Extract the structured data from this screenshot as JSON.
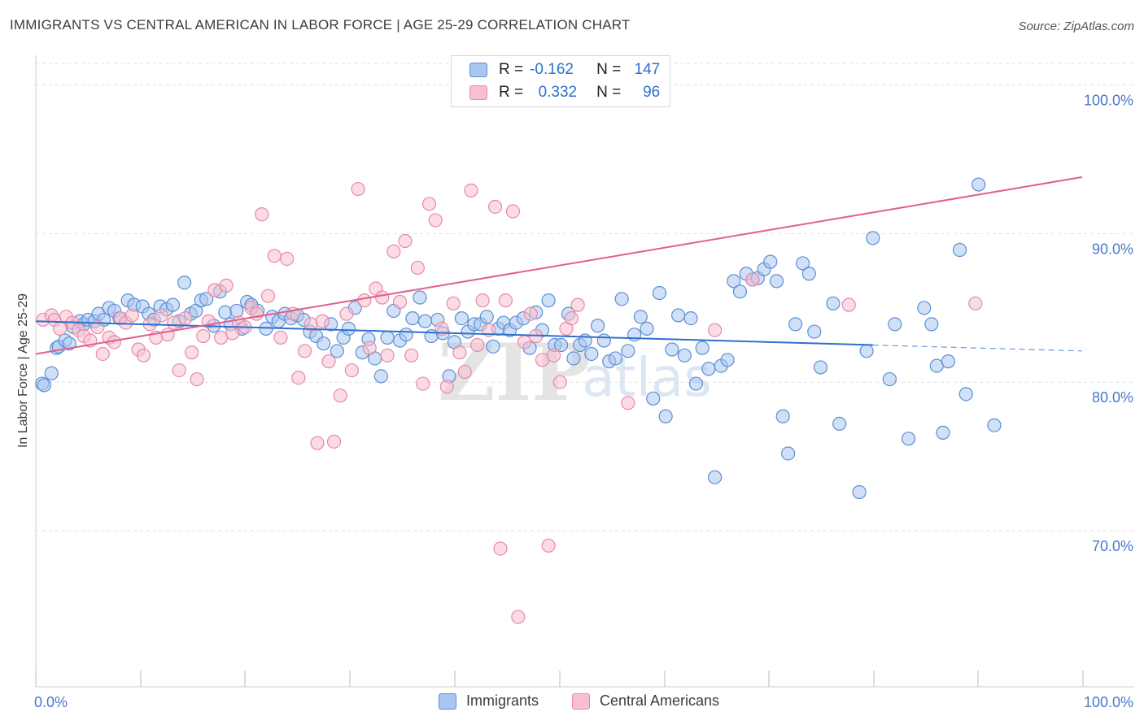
{
  "header": {
    "title": "IMMIGRANTS VS CENTRAL AMERICAN IN LABOR FORCE | AGE 25-29 CORRELATION CHART",
    "source": "Source: ZipAtlas.com"
  },
  "colors": {
    "blue_fill": "#a9c6ee",
    "blue_stroke": "#5b8fd6",
    "blue_line": "#2f6fcf",
    "pink_fill": "#f7bfd0",
    "pink_stroke": "#e889a6",
    "pink_line": "#e0608a",
    "tick_label": "#4a78c8",
    "grid": "#e0e0e0"
  },
  "legend_top": {
    "rows": [
      {
        "r_label": "R =",
        "r_value": "-0.162",
        "n_label": "N =",
        "n_value": "147"
      },
      {
        "r_label": "R =",
        "r_value": "0.332",
        "n_label": "N =",
        "n_value": "96"
      }
    ]
  },
  "legend_bottom": {
    "items": [
      "Immigrants",
      "Central Americans"
    ]
  },
  "watermark": {
    "zip": "ZIP",
    "atlas": "atlas"
  },
  "chart_data": {
    "type": "scatter",
    "title": "IMMIGRANTS VS CENTRAL AMERICAN IN LABOR FORCE | AGE 25-29 CORRELATION CHART",
    "xlabel": "",
    "ylabel": "In Labor Force | Age 25-29",
    "xlim": [
      0,
      100
    ],
    "ylim": [
      59.5,
      102
    ],
    "x_tick_labels": [
      "0.0%",
      "100.0%"
    ],
    "y_ticks": [
      70,
      80,
      90,
      100
    ],
    "y_tick_labels": [
      "70.0%",
      "80.0%",
      "90.0%",
      "100.0%"
    ],
    "grid": true,
    "series": [
      {
        "name": "Immigrants",
        "r": -0.162,
        "n": 147,
        "trend": {
          "x0": 0,
          "y0": 84.1,
          "x1": 80,
          "y1": 82.5,
          "dash_to_x": 100,
          "dash_to_y": 82.1
        },
        "points": [
          [
            0.6,
            79.9
          ],
          [
            0.8,
            79.8
          ],
          [
            1.5,
            80.6
          ],
          [
            2.0,
            82.3
          ],
          [
            2.2,
            82.4
          ],
          [
            2.8,
            82.8
          ],
          [
            3.2,
            82.6
          ],
          [
            3.6,
            83.7
          ],
          [
            4.2,
            84.1
          ],
          [
            4.6,
            83.9
          ],
          [
            5.0,
            84.2
          ],
          [
            5.6,
            84.1
          ],
          [
            6.0,
            84.6
          ],
          [
            6.5,
            84.2
          ],
          [
            7.0,
            85.0
          ],
          [
            7.5,
            84.8
          ],
          [
            8.0,
            84.3
          ],
          [
            8.8,
            85.5
          ],
          [
            9.4,
            85.2
          ],
          [
            10.2,
            85.1
          ],
          [
            10.8,
            84.6
          ],
          [
            11.3,
            84.2
          ],
          [
            11.9,
            85.1
          ],
          [
            12.5,
            84.9
          ],
          [
            13.1,
            85.2
          ],
          [
            13.7,
            84.1
          ],
          [
            14.2,
            86.7
          ],
          [
            14.8,
            84.6
          ],
          [
            15.3,
            84.8
          ],
          [
            15.8,
            85.5
          ],
          [
            16.3,
            85.6
          ],
          [
            17.0,
            83.8
          ],
          [
            17.6,
            86.1
          ],
          [
            18.1,
            84.7
          ],
          [
            18.6,
            83.9
          ],
          [
            19.2,
            84.8
          ],
          [
            19.7,
            83.6
          ],
          [
            20.2,
            85.4
          ],
          [
            20.6,
            85.2
          ],
          [
            21.2,
            84.8
          ],
          [
            22.0,
            83.6
          ],
          [
            22.6,
            84.4
          ],
          [
            23.2,
            84.1
          ],
          [
            23.8,
            84.6
          ],
          [
            24.4,
            84.3
          ],
          [
            25.0,
            84.5
          ],
          [
            25.6,
            84.2
          ],
          [
            26.2,
            83.4
          ],
          [
            26.8,
            83.1
          ],
          [
            27.5,
            82.6
          ],
          [
            28.2,
            83.9
          ],
          [
            28.8,
            82.1
          ],
          [
            29.4,
            83.0
          ],
          [
            29.9,
            83.6
          ],
          [
            30.5,
            85.0
          ],
          [
            31.2,
            82.0
          ],
          [
            31.8,
            82.9
          ],
          [
            32.4,
            81.6
          ],
          [
            33.0,
            80.4
          ],
          [
            33.6,
            83.0
          ],
          [
            34.2,
            84.8
          ],
          [
            34.8,
            82.8
          ],
          [
            35.4,
            83.2
          ],
          [
            36.0,
            84.3
          ],
          [
            36.7,
            85.7
          ],
          [
            37.2,
            84.1
          ],
          [
            37.8,
            83.1
          ],
          [
            38.4,
            84.2
          ],
          [
            38.9,
            83.3
          ],
          [
            39.5,
            80.4
          ],
          [
            40.0,
            82.7
          ],
          [
            40.7,
            84.3
          ],
          [
            41.3,
            83.4
          ],
          [
            41.9,
            83.9
          ],
          [
            42.5,
            83.9
          ],
          [
            43.1,
            84.4
          ],
          [
            43.7,
            82.4
          ],
          [
            44.2,
            83.6
          ],
          [
            44.7,
            84.0
          ],
          [
            45.3,
            83.5
          ],
          [
            45.9,
            84.0
          ],
          [
            46.6,
            84.3
          ],
          [
            47.2,
            82.3
          ],
          [
            47.8,
            84.7
          ],
          [
            48.4,
            83.5
          ],
          [
            49.0,
            85.5
          ],
          [
            49.6,
            82.5
          ],
          [
            50.2,
            82.5
          ],
          [
            50.9,
            84.6
          ],
          [
            51.4,
            81.6
          ],
          [
            52.0,
            82.5
          ],
          [
            52.5,
            82.8
          ],
          [
            53.1,
            81.9
          ],
          [
            53.7,
            83.8
          ],
          [
            54.3,
            82.8
          ],
          [
            54.8,
            81.4
          ],
          [
            55.4,
            81.6
          ],
          [
            56.0,
            85.6
          ],
          [
            56.6,
            82.1
          ],
          [
            57.2,
            83.2
          ],
          [
            57.8,
            84.4
          ],
          [
            58.4,
            83.6
          ],
          [
            59.0,
            78.9
          ],
          [
            59.6,
            86.0
          ],
          [
            60.2,
            77.7
          ],
          [
            60.8,
            82.2
          ],
          [
            61.4,
            84.5
          ],
          [
            62.0,
            81.8
          ],
          [
            62.6,
            84.3
          ],
          [
            63.1,
            79.9
          ],
          [
            63.7,
            82.3
          ],
          [
            64.3,
            80.9
          ],
          [
            64.9,
            73.6
          ],
          [
            65.5,
            81.1
          ],
          [
            66.1,
            81.5
          ],
          [
            66.7,
            86.8
          ],
          [
            67.3,
            86.1
          ],
          [
            67.9,
            87.3
          ],
          [
            68.5,
            86.9
          ],
          [
            69.0,
            87.0
          ],
          [
            69.6,
            87.6
          ],
          [
            70.2,
            88.1
          ],
          [
            70.8,
            86.8
          ],
          [
            71.4,
            77.7
          ],
          [
            71.9,
            75.2
          ],
          [
            72.6,
            83.9
          ],
          [
            73.3,
            88.0
          ],
          [
            73.9,
            87.3
          ],
          [
            74.4,
            83.4
          ],
          [
            75.0,
            81.0
          ],
          [
            76.2,
            85.3
          ],
          [
            76.8,
            77.2
          ],
          [
            78.7,
            72.6
          ],
          [
            79.4,
            82.1
          ],
          [
            80.0,
            89.7
          ],
          [
            81.6,
            80.2
          ],
          [
            82.1,
            83.9
          ],
          [
            83.4,
            76.2
          ],
          [
            84.9,
            85.0
          ],
          [
            85.6,
            83.9
          ],
          [
            86.1,
            81.1
          ],
          [
            86.7,
            76.6
          ],
          [
            87.2,
            81.4
          ],
          [
            88.3,
            88.9
          ],
          [
            88.9,
            79.2
          ],
          [
            90.1,
            93.3
          ],
          [
            91.6,
            77.1
          ]
        ]
      },
      {
        "name": "Central Americans",
        "r": 0.332,
        "n": 96,
        "trend": {
          "x0": 0,
          "y0": 81.9,
          "x1": 100,
          "y1": 93.8
        },
        "points": [
          [
            0.7,
            84.2
          ],
          [
            1.5,
            84.5
          ],
          [
            1.8,
            84.2
          ],
          [
            2.3,
            83.6
          ],
          [
            2.9,
            84.4
          ],
          [
            3.5,
            84.0
          ],
          [
            4.1,
            83.5
          ],
          [
            4.6,
            83.1
          ],
          [
            5.2,
            82.8
          ],
          [
            5.9,
            83.7
          ],
          [
            6.4,
            81.9
          ],
          [
            7.0,
            83.0
          ],
          [
            7.5,
            82.7
          ],
          [
            8.1,
            84.3
          ],
          [
            8.6,
            84.0
          ],
          [
            9.2,
            84.5
          ],
          [
            9.8,
            82.2
          ],
          [
            10.3,
            81.8
          ],
          [
            10.9,
            83.9
          ],
          [
            11.5,
            83.0
          ],
          [
            12.0,
            84.5
          ],
          [
            12.6,
            83.2
          ],
          [
            13.2,
            84.0
          ],
          [
            13.7,
            80.8
          ],
          [
            14.3,
            84.3
          ],
          [
            14.9,
            82.0
          ],
          [
            15.4,
            80.2
          ],
          [
            16.0,
            83.1
          ],
          [
            16.5,
            84.1
          ],
          [
            17.1,
            86.2
          ],
          [
            17.7,
            83.0
          ],
          [
            18.2,
            86.5
          ],
          [
            18.8,
            83.3
          ],
          [
            19.4,
            84.0
          ],
          [
            20.0,
            83.7
          ],
          [
            20.6,
            85.0
          ],
          [
            21.1,
            84.6
          ],
          [
            21.6,
            91.3
          ],
          [
            22.2,
            85.8
          ],
          [
            22.8,
            88.5
          ],
          [
            23.4,
            83.0
          ],
          [
            24.0,
            88.3
          ],
          [
            24.6,
            84.6
          ],
          [
            25.1,
            80.3
          ],
          [
            25.7,
            82.1
          ],
          [
            26.3,
            83.9
          ],
          [
            26.9,
            75.9
          ],
          [
            27.4,
            84.1
          ],
          [
            28.0,
            81.4
          ],
          [
            28.5,
            76.0
          ],
          [
            29.1,
            79.1
          ],
          [
            29.7,
            84.6
          ],
          [
            30.2,
            80.8
          ],
          [
            30.8,
            93.0
          ],
          [
            31.4,
            85.5
          ],
          [
            31.9,
            82.3
          ],
          [
            32.5,
            86.3
          ],
          [
            33.1,
            85.7
          ],
          [
            33.6,
            81.8
          ],
          [
            34.2,
            88.8
          ],
          [
            34.8,
            85.4
          ],
          [
            35.3,
            89.5
          ],
          [
            35.9,
            81.8
          ],
          [
            36.5,
            87.7
          ],
          [
            37.0,
            79.9
          ],
          [
            37.6,
            92.0
          ],
          [
            38.2,
            90.9
          ],
          [
            38.8,
            83.6
          ],
          [
            39.3,
            79.7
          ],
          [
            39.9,
            85.3
          ],
          [
            40.5,
            82.0
          ],
          [
            41.0,
            80.7
          ],
          [
            41.6,
            92.9
          ],
          [
            42.2,
            82.5
          ],
          [
            42.7,
            85.5
          ],
          [
            43.3,
            83.5
          ],
          [
            43.9,
            91.8
          ],
          [
            44.4,
            68.8
          ],
          [
            44.9,
            85.5
          ],
          [
            45.6,
            91.5
          ],
          [
            46.1,
            64.2
          ],
          [
            46.7,
            82.7
          ],
          [
            47.3,
            84.6
          ],
          [
            47.8,
            83.1
          ],
          [
            48.4,
            81.5
          ],
          [
            49.0,
            69.0
          ],
          [
            49.5,
            81.8
          ],
          [
            50.1,
            80.0
          ],
          [
            50.7,
            83.6
          ],
          [
            51.2,
            84.3
          ],
          [
            51.8,
            85.2
          ],
          [
            56.6,
            78.6
          ],
          [
            64.9,
            83.5
          ],
          [
            68.5,
            86.9
          ],
          [
            77.7,
            85.2
          ],
          [
            89.8,
            85.3
          ]
        ]
      }
    ]
  }
}
